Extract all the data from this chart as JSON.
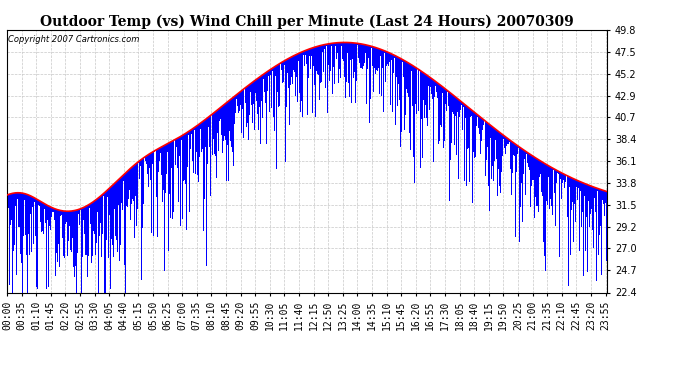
{
  "title": "Outdoor Temp (vs) Wind Chill per Minute (Last 24 Hours) 20070309",
  "copyright_text": "Copyright 2007 Cartronics.com",
  "ylim": [
    22.4,
    49.8
  ],
  "yticks": [
    22.4,
    24.7,
    27.0,
    29.2,
    31.5,
    33.8,
    36.1,
    38.4,
    40.7,
    42.9,
    45.2,
    47.5,
    49.8
  ],
  "background_color": "#ffffff",
  "plot_bg_color": "#ffffff",
  "bar_color": "#0000ff",
  "smooth_color": "#ff0000",
  "grid_color": "#c8c8c8",
  "title_fontsize": 10,
  "tick_fontsize": 7,
  "num_minutes": 1440,
  "tick_interval": 35
}
